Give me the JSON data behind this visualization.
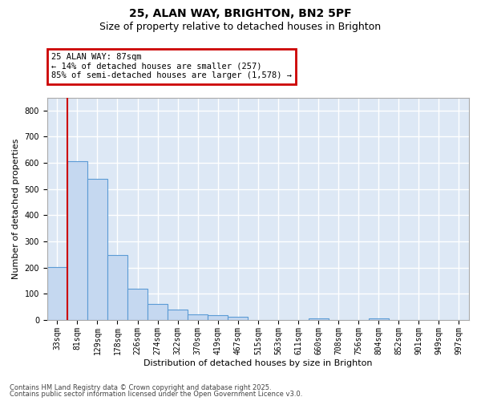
{
  "title_line1": "25, ALAN WAY, BRIGHTON, BN2 5PF",
  "title_line2": "Size of property relative to detached houses in Brighton",
  "xlabel": "Distribution of detached houses by size in Brighton",
  "ylabel": "Number of detached properties",
  "bar_color": "#c5d8f0",
  "bar_edge_color": "#5b9bd5",
  "background_color": "#dde8f5",
  "grid_color": "#ffffff",
  "annotation_box_color": "#cc0000",
  "property_line_color": "#cc0000",
  "categories": [
    "33sqm",
    "81sqm",
    "129sqm",
    "178sqm",
    "226sqm",
    "274sqm",
    "322sqm",
    "370sqm",
    "419sqm",
    "467sqm",
    "515sqm",
    "563sqm",
    "611sqm",
    "660sqm",
    "708sqm",
    "756sqm",
    "804sqm",
    "852sqm",
    "901sqm",
    "949sqm",
    "997sqm"
  ],
  "values": [
    203,
    607,
    540,
    248,
    120,
    62,
    40,
    22,
    18,
    11,
    0,
    0,
    0,
    7,
    0,
    0,
    5,
    0,
    0,
    0,
    0
  ],
  "property_line_x": 1.5,
  "annotation_text": "25 ALAN WAY: 87sqm\n← 14% of detached houses are smaller (257)\n85% of semi-detached houses are larger (1,578) →",
  "ylim": [
    0,
    850
  ],
  "yticks": [
    0,
    100,
    200,
    300,
    400,
    500,
    600,
    700,
    800
  ],
  "footer_line1": "Contains HM Land Registry data © Crown copyright and database right 2025.",
  "footer_line2": "Contains public sector information licensed under the Open Government Licence v3.0.",
  "title_fontsize": 10,
  "subtitle_fontsize": 9,
  "axis_label_fontsize": 8,
  "tick_fontsize": 7,
  "annotation_fontsize": 7.5,
  "footer_fontsize": 6
}
